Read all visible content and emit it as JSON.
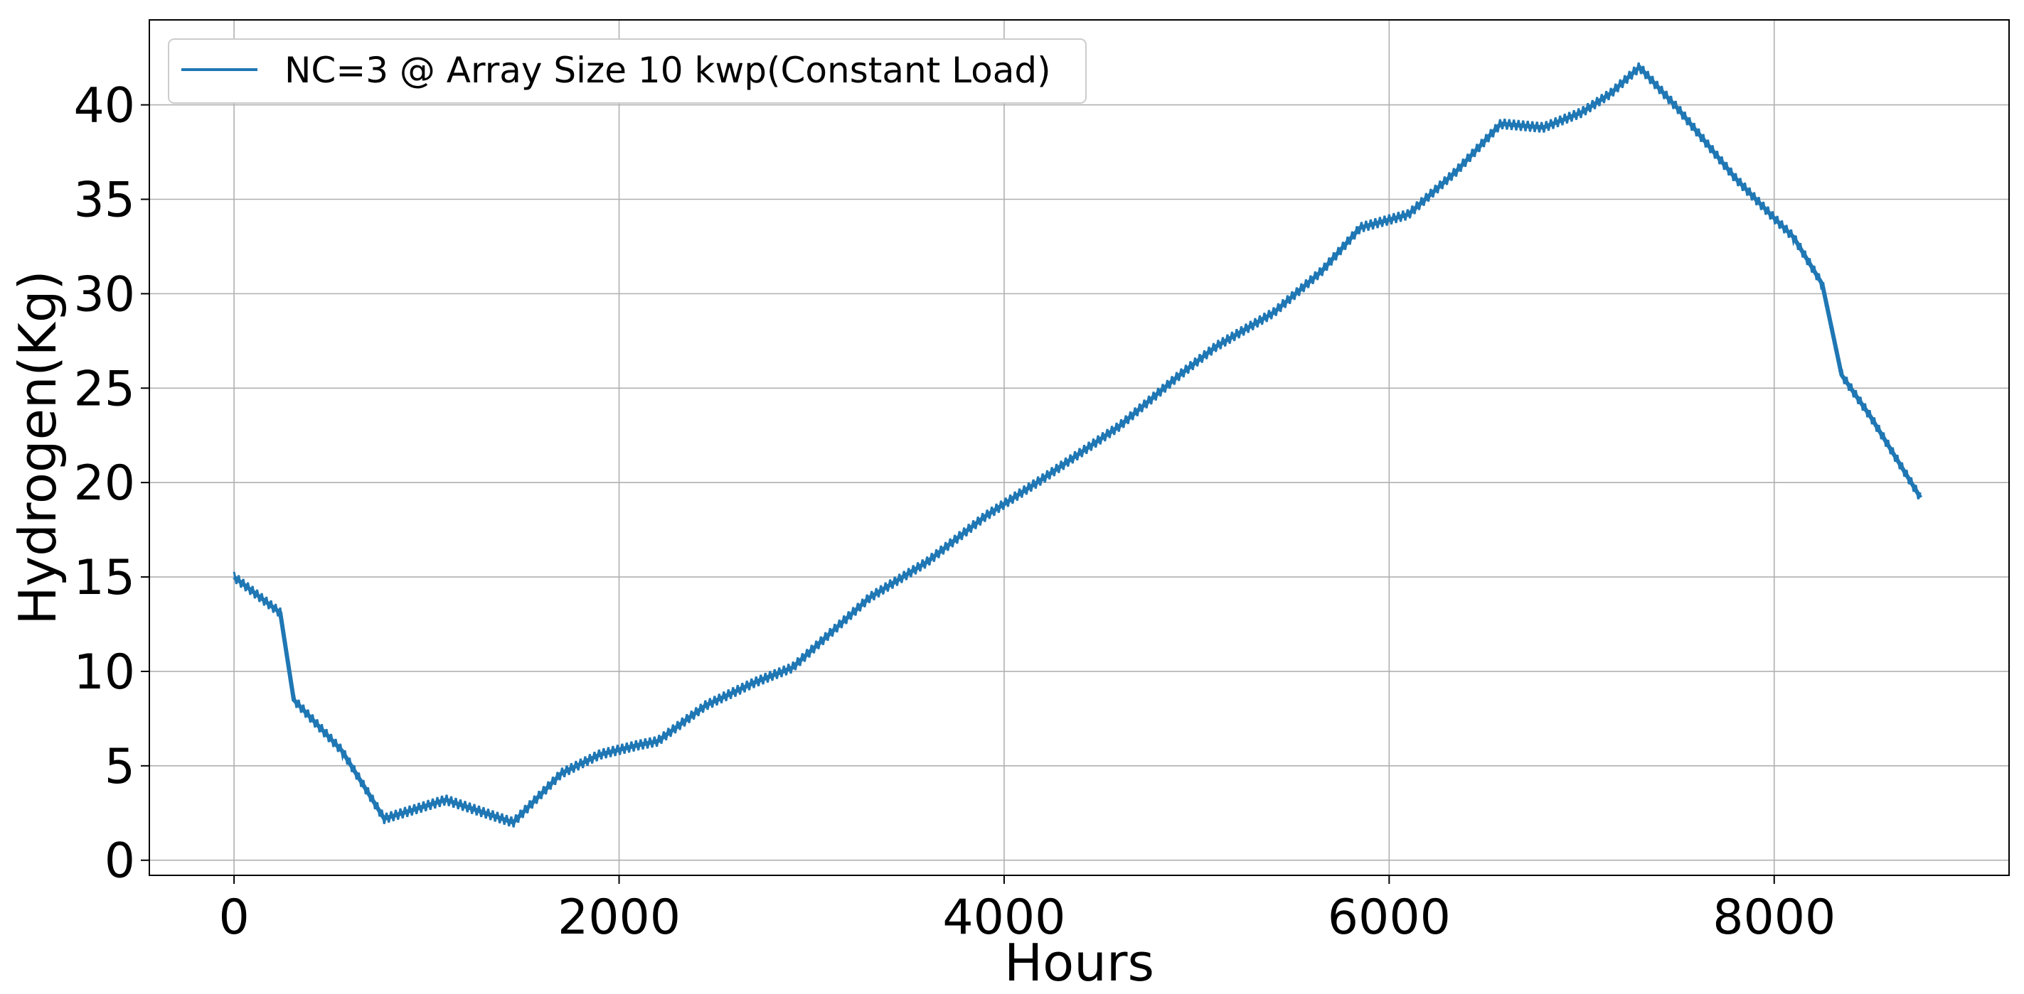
{
  "chart_data": {
    "type": "line",
    "title": "",
    "xlabel": "Hours",
    "ylabel": "Hydrogen(Kg)",
    "xlim": [
      -440,
      9220
    ],
    "ylim": [
      -0.8,
      44.5
    ],
    "x_ticks": [
      0,
      2000,
      4000,
      6000,
      8000
    ],
    "x_tick_labels": [
      "0",
      "2000",
      "4000",
      "6000",
      "8000"
    ],
    "y_ticks": [
      0,
      5,
      10,
      15,
      20,
      25,
      30,
      35,
      40
    ],
    "y_tick_labels": [
      "0",
      "5",
      "10",
      "15",
      "20",
      "25",
      "30",
      "35",
      "40"
    ],
    "grid": true,
    "legend_position": "top-left",
    "colors": {
      "series": "#1f77b4",
      "grid": "#b0b0b0",
      "frame": "#000000"
    },
    "series": [
      {
        "name": "NC=3 @ Array Size 10 kwp(Constant Load)",
        "daily_ripple_kg": 0.55,
        "x": [
          0,
          240,
          310,
          560,
          780,
          1100,
          1450,
          1700,
          1900,
          2100,
          2200,
          2450,
          2700,
          2900,
          3300,
          3600,
          3900,
          4200,
          4600,
          4900,
          5100,
          5400,
          5650,
          5850,
          6100,
          6350,
          6580,
          6800,
          7000,
          7150,
          7300,
          7500,
          7800,
          8000,
          8100,
          8250,
          8350,
          8500,
          8760
        ],
        "y": [
          15.0,
          13.1,
          8.5,
          5.8,
          2.2,
          3.2,
          2.0,
          4.6,
          5.6,
          6.1,
          6.3,
          8.2,
          9.4,
          10.2,
          13.9,
          15.8,
          18.2,
          20.2,
          23.0,
          25.6,
          27.2,
          29.0,
          31.2,
          33.5,
          34.2,
          36.5,
          39.0,
          38.8,
          39.6,
          40.6,
          42.0,
          39.8,
          36.1,
          34.0,
          33.0,
          30.5,
          25.7,
          23.5,
          19.2
        ]
      }
    ]
  }
}
